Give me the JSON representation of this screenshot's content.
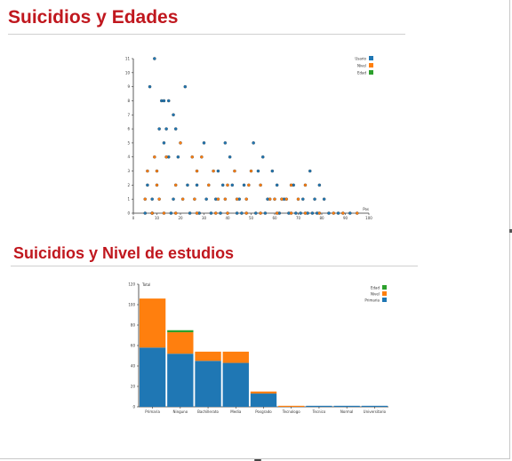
{
  "section1": {
    "title": "Suicidios y Edades",
    "chart_data": {
      "type": "scatter",
      "title": "Suicidios y Edades",
      "xlabel": "Pos",
      "ylabel": "",
      "xlim": [
        0,
        100
      ],
      "ylim": [
        0,
        11
      ],
      "x_ticks": [
        "0",
        "10",
        "20",
        "30",
        "40",
        "50",
        "60",
        "70",
        "80",
        "90",
        "100"
      ],
      "y_ticks": [
        "0",
        "1",
        "2",
        "3",
        "4",
        "5",
        "6",
        "7",
        "8",
        "9",
        "10",
        "11"
      ],
      "legend_position": "top-right",
      "series": [
        {
          "name": "Usario",
          "color": "#1f77b4",
          "points": [
            [
              9,
              11
            ],
            [
              7,
              9
            ],
            [
              12,
              8
            ],
            [
              13,
              8
            ],
            [
              15,
              8
            ],
            [
              17,
              7
            ],
            [
              22,
              9
            ],
            [
              11,
              6
            ],
            [
              14,
              6
            ],
            [
              18,
              6
            ],
            [
              13,
              5
            ],
            [
              15,
              4
            ],
            [
              19,
              4
            ],
            [
              30,
              5
            ],
            [
              39,
              5
            ],
            [
              36,
              3
            ],
            [
              42,
              2
            ],
            [
              45,
              1
            ],
            [
              51,
              5
            ],
            [
              55,
              4
            ],
            [
              59,
              3
            ],
            [
              61,
              2
            ],
            [
              6,
              2
            ],
            [
              8,
              1
            ],
            [
              17,
              1
            ],
            [
              23,
              2
            ],
            [
              27,
              2
            ],
            [
              31,
              1
            ],
            [
              35,
              1
            ],
            [
              38,
              2
            ],
            [
              41,
              4
            ],
            [
              47,
              2
            ],
            [
              53,
              3
            ],
            [
              57,
              1
            ],
            [
              64,
              1
            ],
            [
              68,
              2
            ],
            [
              72,
              1
            ],
            [
              75,
              3
            ],
            [
              77,
              1
            ],
            [
              79,
              2
            ],
            [
              81,
              1
            ],
            [
              5,
              0
            ],
            [
              8,
              0
            ],
            [
              16,
              0
            ],
            [
              24,
              0
            ],
            [
              28,
              0
            ],
            [
              33,
              0
            ],
            [
              37,
              0
            ],
            [
              44,
              0
            ],
            [
              46,
              0
            ],
            [
              52,
              0
            ],
            [
              56,
              0
            ],
            [
              62,
              0
            ],
            [
              66,
              0
            ],
            [
              69,
              0
            ],
            [
              71,
              0
            ],
            [
              74,
              0
            ],
            [
              76,
              0
            ],
            [
              78,
              0
            ],
            [
              83,
              0
            ],
            [
              87,
              0
            ],
            [
              92,
              0
            ]
          ]
        },
        {
          "name": "Nivel",
          "color": "#ff7f0e",
          "points": [
            [
              6,
              3
            ],
            [
              9,
              4
            ],
            [
              10,
              3
            ],
            [
              14,
              4
            ],
            [
              20,
              5
            ],
            [
              25,
              4
            ],
            [
              27,
              3
            ],
            [
              29,
              4
            ],
            [
              34,
              3
            ],
            [
              40,
              2
            ],
            [
              43,
              3
            ],
            [
              48,
              1
            ],
            [
              50,
              3
            ],
            [
              54,
              2
            ],
            [
              58,
              1
            ],
            [
              63,
              1
            ],
            [
              67,
              2
            ],
            [
              73,
              2
            ],
            [
              10,
              2
            ],
            [
              18,
              2
            ],
            [
              21,
              1
            ],
            [
              26,
              1
            ],
            [
              32,
              2
            ],
            [
              36,
              1
            ],
            [
              39,
              1
            ],
            [
              44,
              1
            ],
            [
              49,
              2
            ],
            [
              60,
              1
            ],
            [
              65,
              1
            ],
            [
              70,
              1
            ],
            [
              5,
              1
            ],
            [
              11,
              1
            ],
            [
              8,
              0
            ],
            [
              13,
              0
            ],
            [
              18,
              0
            ],
            [
              27,
              0
            ],
            [
              35,
              0
            ],
            [
              40,
              0
            ],
            [
              48,
              0
            ],
            [
              54,
              0
            ],
            [
              61,
              0
            ],
            [
              67,
              0
            ],
            [
              73,
              0
            ],
            [
              79,
              0
            ],
            [
              85,
              0
            ],
            [
              89,
              0
            ],
            [
              95,
              0
            ]
          ]
        },
        {
          "name": "Edad",
          "color": "#2ca02c",
          "points": []
        }
      ]
    }
  },
  "section2": {
    "title": "Suicidios y Nivel de estudios",
    "chart_data": {
      "type": "bar",
      "stacked": true,
      "title": "Suicidios y Nivel de estudios",
      "xlabel": "",
      "ylabel": "Total",
      "ylim": [
        0,
        120
      ],
      "y_ticks": [
        "0",
        "20",
        "40",
        "60",
        "80",
        "100",
        "120"
      ],
      "legend_position": "top-right",
      "categories": [
        "Primaria",
        "Ninguno",
        "Bachillerato",
        "Media",
        "Posgrado",
        "Tecnologo",
        "Tecnico",
        "Normal",
        "Universitario"
      ],
      "series": [
        {
          "name": "Primaria",
          "color": "#1f77b4",
          "values": [
            58,
            52,
            45,
            43,
            13,
            0,
            1,
            1,
            1
          ]
        },
        {
          "name": "Nivel",
          "color": "#ff7f0e",
          "values": [
            48,
            21,
            9,
            11,
            2,
            1,
            0,
            0,
            0
          ]
        },
        {
          "name": "Edad",
          "color": "#2ca02c",
          "values": [
            0,
            2,
            0,
            0,
            0,
            0,
            0,
            0,
            0
          ]
        }
      ]
    }
  }
}
